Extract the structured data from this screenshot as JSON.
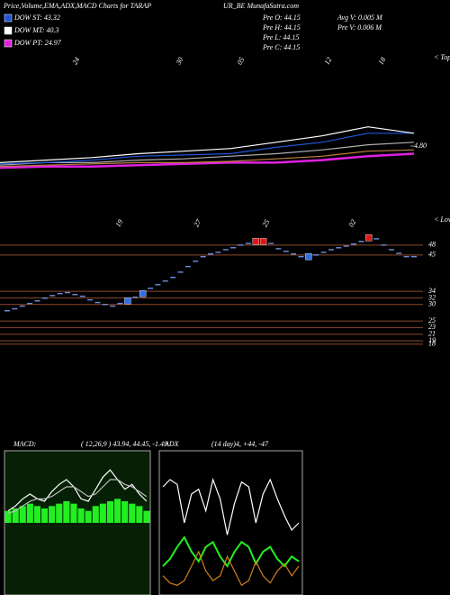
{
  "header": {
    "title_left": "Price,Volume,EMA,ADX,MACD Charts for TARAP",
    "title_right": "UR_BE MunafaSutra.com"
  },
  "legend": [
    {
      "label": "DOW ST: 43.32",
      "color": "#1e56d8"
    },
    {
      "label": "DOW MT: 40.3",
      "color": "#ffffff"
    },
    {
      "label": "DOW PT: 24.97",
      "color": "#e020e0"
    }
  ],
  "stats": [
    "Pre  O: 44.15",
    "Pre  H: 44.15",
    "Pre  L: 44.15",
    "Pre  C: 44.15",
    "Avg V: 0.005 M",
    "Pre  V: 0.006 M"
  ],
  "chart_data": [
    {
      "type": "line",
      "x_labels": [
        "24",
        "30",
        "05",
        "12",
        "18"
      ],
      "corner_label": "< Topo",
      "ylim": [
        4.32,
        5.52
      ],
      "yticks": [
        {
          "value": 4.8,
          "label": "4.80"
        }
      ],
      "series": [
        {
          "color": "#e020e0",
          "values": [
            4.63,
            4.64,
            4.64,
            4.65,
            4.66,
            4.67,
            4.67,
            4.69,
            4.72,
            4.74
          ]
        },
        {
          "color": "#c08040",
          "values": [
            4.64,
            4.65,
            4.66,
            4.67,
            4.67,
            4.68,
            4.7,
            4.72,
            4.76,
            4.77
          ]
        },
        {
          "color": "#b0b0b0",
          "values": [
            4.65,
            4.67,
            4.67,
            4.69,
            4.7,
            4.72,
            4.74,
            4.77,
            4.81,
            4.83
          ]
        },
        {
          "color": "#1e56d8",
          "values": [
            4.66,
            4.67,
            4.69,
            4.72,
            4.73,
            4.74,
            4.79,
            4.83,
            4.9,
            4.9
          ]
        },
        {
          "color": "#ffffff",
          "values": [
            4.67,
            4.69,
            4.71,
            4.74,
            4.76,
            4.78,
            4.83,
            4.88,
            4.95,
            4.9
          ]
        }
      ]
    },
    {
      "type": "candle",
      "x_labels": [
        "19",
        "27",
        "25",
        "02"
      ],
      "corner_label": "< Lows",
      "ylim": [
        13,
        56.7
      ],
      "yticks": [
        48,
        45,
        34,
        32,
        30,
        25,
        23,
        21,
        19,
        18
      ],
      "color": "#6f8fe0",
      "values": [
        28.1,
        28.7,
        29.5,
        30.3,
        31.1,
        31.9,
        32.7,
        33.3,
        33.6,
        33.0,
        32.5,
        31.4,
        30.6,
        30.0,
        29.5,
        30.3,
        31.1,
        32.2,
        33.3,
        34.9,
        36.0,
        37.1,
        38.2,
        39.8,
        41.5,
        43.1,
        44.5,
        45.3,
        45.8,
        46.6,
        47.2,
        48.0,
        48.5,
        49.1,
        49.1,
        48.5,
        46.9,
        46.1,
        45.3,
        44.5,
        44.5,
        45.0,
        45.8,
        46.6,
        47.2,
        47.7,
        48.3,
        49.1,
        50.2,
        49.9,
        48.0,
        46.6,
        45.5,
        44.5,
        44.5
      ],
      "highlight": [
        {
          "index": 16,
          "color": "#2f6ee8"
        },
        {
          "index": 18,
          "color": "#2f6ee8"
        },
        {
          "index": 33,
          "color": "#e01818"
        },
        {
          "index": 34,
          "color": "#e01818"
        },
        {
          "index": 40,
          "color": "#2f6ee8"
        },
        {
          "index": 48,
          "color": "#e01818"
        }
      ]
    },
    {
      "type": "macd",
      "title": "MACD:",
      "subtitle": "( 12,26,9 ) 43.94, 44.45, -1.49",
      "ylim": [
        -3,
        3
      ],
      "color": "#22ee22",
      "values": [
        0.5,
        0.6,
        0.7,
        0.8,
        0.7,
        0.6,
        0.7,
        0.8,
        0.9,
        0.8,
        0.6,
        0.5,
        0.7,
        0.8,
        0.9,
        1.0,
        0.9,
        0.8,
        0.7,
        0.5
      ],
      "series": [
        {
          "color": "#ffffff",
          "values": [
            0.5,
            0.7,
            1.0,
            1.2,
            1.0,
            0.9,
            1.3,
            1.6,
            1.8,
            1.5,
            1.0,
            0.9,
            1.4,
            1.9,
            2.2,
            1.8,
            1.4,
            1.6,
            1.2,
            0.9
          ]
        },
        {
          "color": "#bbbbbb",
          "values": [
            0.4,
            0.5,
            0.7,
            0.9,
            1.0,
            1.0,
            1.1,
            1.3,
            1.5,
            1.5,
            1.3,
            1.1,
            1.2,
            1.5,
            1.8,
            1.8,
            1.6,
            1.5,
            1.3,
            1.1
          ]
        }
      ]
    },
    {
      "type": "adx",
      "title": "ADX",
      "subtitle": "(14 day)4, +44, -47",
      "ylim": [
        0,
        60
      ],
      "series": [
        {
          "color": "#ffffff",
          "values": [
            45,
            48,
            46,
            30,
            42,
            44,
            35,
            48,
            40,
            25,
            38,
            47,
            45,
            30,
            42,
            48,
            40,
            33,
            27,
            30
          ]
        },
        {
          "color": "#22ee22",
          "values": [
            12,
            15,
            20,
            24,
            18,
            14,
            20,
            22,
            16,
            12,
            18,
            22,
            20,
            13,
            18,
            20,
            15,
            12,
            16,
            14
          ]
        },
        {
          "color": "#d08020",
          "values": [
            8,
            5,
            4,
            6,
            12,
            18,
            10,
            6,
            8,
            16,
            10,
            4,
            6,
            14,
            8,
            5,
            10,
            13,
            8,
            12
          ]
        }
      ]
    }
  ]
}
